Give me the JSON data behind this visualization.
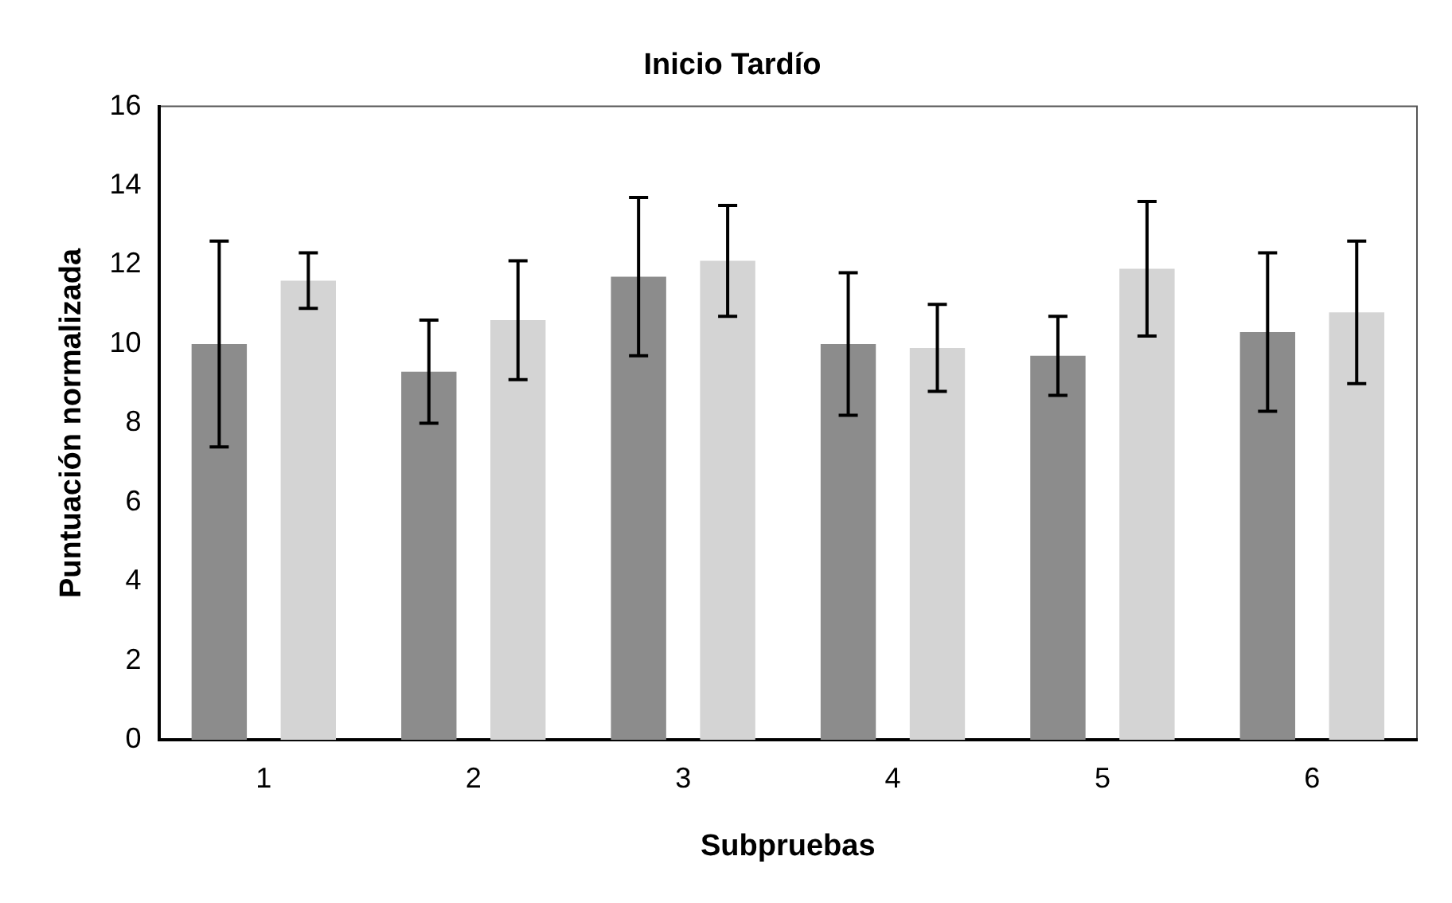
{
  "chart_data": {
    "type": "bar",
    "title": "Inicio Tardío",
    "xlabel": "Subpruebas",
    "ylabel": "Puntuación normalizada",
    "categories": [
      "1",
      "2",
      "3",
      "4",
      "5",
      "6"
    ],
    "series": [
      {
        "color": "#8c8c8c",
        "values": [
          10.0,
          9.3,
          11.7,
          10.0,
          9.7,
          10.3
        ],
        "errors": [
          2.6,
          1.3,
          2.0,
          1.8,
          1.0,
          2.0
        ]
      },
      {
        "color": "#d4d4d4",
        "values": [
          11.6,
          10.6,
          12.1,
          9.9,
          11.9,
          10.8
        ],
        "errors": [
          0.7,
          1.5,
          1.4,
          1.1,
          1.7,
          1.8
        ]
      }
    ],
    "ylim": [
      0,
      16
    ],
    "yticks": [
      0,
      2,
      4,
      6,
      8,
      10,
      12,
      14,
      16
    ],
    "grid": false,
    "legend": false
  }
}
